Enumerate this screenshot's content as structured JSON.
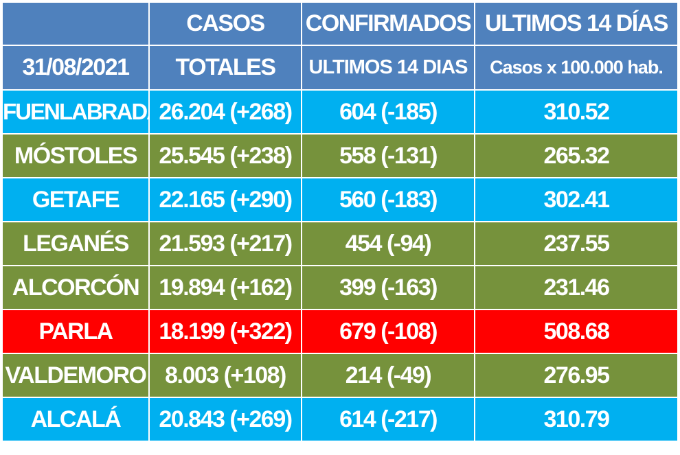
{
  "header": {
    "row1": [
      "",
      "CASOS",
      "CONFIRMADOS",
      "ULTIMOS 14 DÍAS"
    ],
    "row2": [
      "31/08/2021",
      "TOTALES",
      "ULTIMOS 14 DIAS",
      "Casos x 100.000 hab."
    ]
  },
  "colors": {
    "header": "#4f81bd",
    "blue": "#00b0f0",
    "green": "#76923c",
    "red": "#ff0000",
    "text": "#ffffff"
  },
  "rows": [
    {
      "city": "FUENLABRADA",
      "total": "26.204 (+268)",
      "last14": "604 (-185)",
      "rate": "310.52",
      "color": "blue"
    },
    {
      "city": "MÓSTOLES",
      "total": "25.545 (+238)",
      "last14": "558 (-131)",
      "rate": "265.32",
      "color": "green"
    },
    {
      "city": "GETAFE",
      "total": "22.165 (+290)",
      "last14": "560 (-183)",
      "rate": "302.41",
      "color": "blue"
    },
    {
      "city": "LEGANÉS",
      "total": "21.593 (+217)",
      "last14": "454 (-94)",
      "rate": "237.55",
      "color": "green"
    },
    {
      "city": "ALCORCÓN",
      "total": "19.894 (+162)",
      "last14": "399 (-163)",
      "rate": "231.46",
      "color": "green"
    },
    {
      "city": "PARLA",
      "total": "18.199 (+322)",
      "last14": "679 (-108)",
      "rate": "508.68",
      "color": "red"
    },
    {
      "city": "VALDEMORO",
      "total": "8.003 (+108)",
      "last14": "214 (-49)",
      "rate": "276.95",
      "color": "green"
    },
    {
      "city": "ALCALÁ",
      "total": "20.843 (+269)",
      "last14": "614 (-217)",
      "rate": "310.79",
      "color": "blue"
    }
  ]
}
